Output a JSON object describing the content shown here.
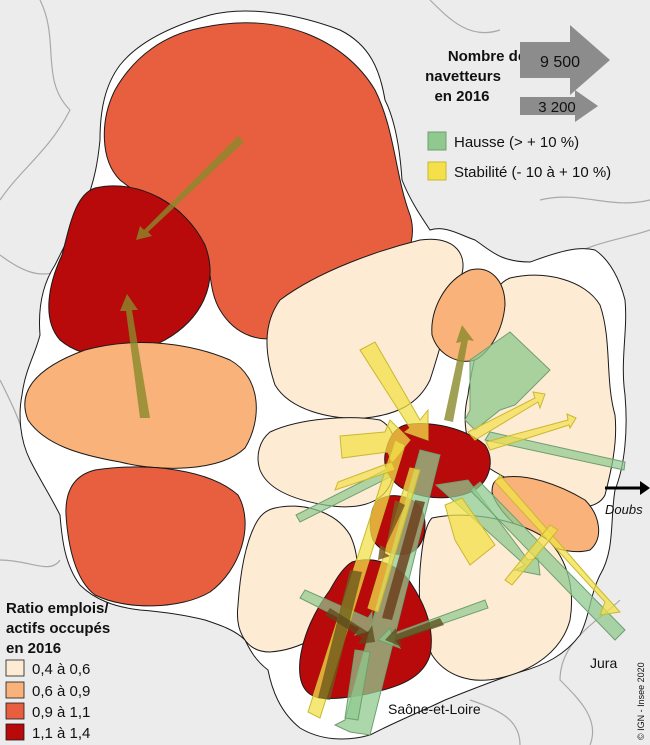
{
  "commuters_legend": {
    "title_lines": [
      "Nombre de",
      "navetteurs",
      "en 2016"
    ],
    "big_value": "9 500",
    "small_value": "3 200",
    "arrow_color": "#8c8c8c"
  },
  "trend_legend": [
    {
      "label": "Hausse (> + 10 %)",
      "color": "#8fc98f"
    },
    {
      "label": "Stabilité (- 10 à + 10 %)",
      "color": "#f3e04a"
    }
  ],
  "ratio_legend": {
    "title_lines": [
      "Ratio emplois/",
      "actifs occupés",
      "en 2016"
    ],
    "classes": [
      {
        "label": "0,4 à 0,6",
        "color": "#fdebd3"
      },
      {
        "label": "0,6 à 0,9",
        "color": "#f9b27a"
      },
      {
        "label": "0,9 à 1,1",
        "color": "#e85f3f"
      },
      {
        "label": "1,1 à 1,4",
        "color": "#b80a0a"
      }
    ]
  },
  "place_labels": {
    "doubs": "Doubs",
    "jura": "Jura",
    "saone_et_loire": "Saône-et-Loire"
  },
  "credit": "© IGN - Insee 2020",
  "colors": {
    "background": "#ececec",
    "region_fill": "#ffffff",
    "outline": "#1a1a1a",
    "boundary": "#a9a9a9"
  }
}
